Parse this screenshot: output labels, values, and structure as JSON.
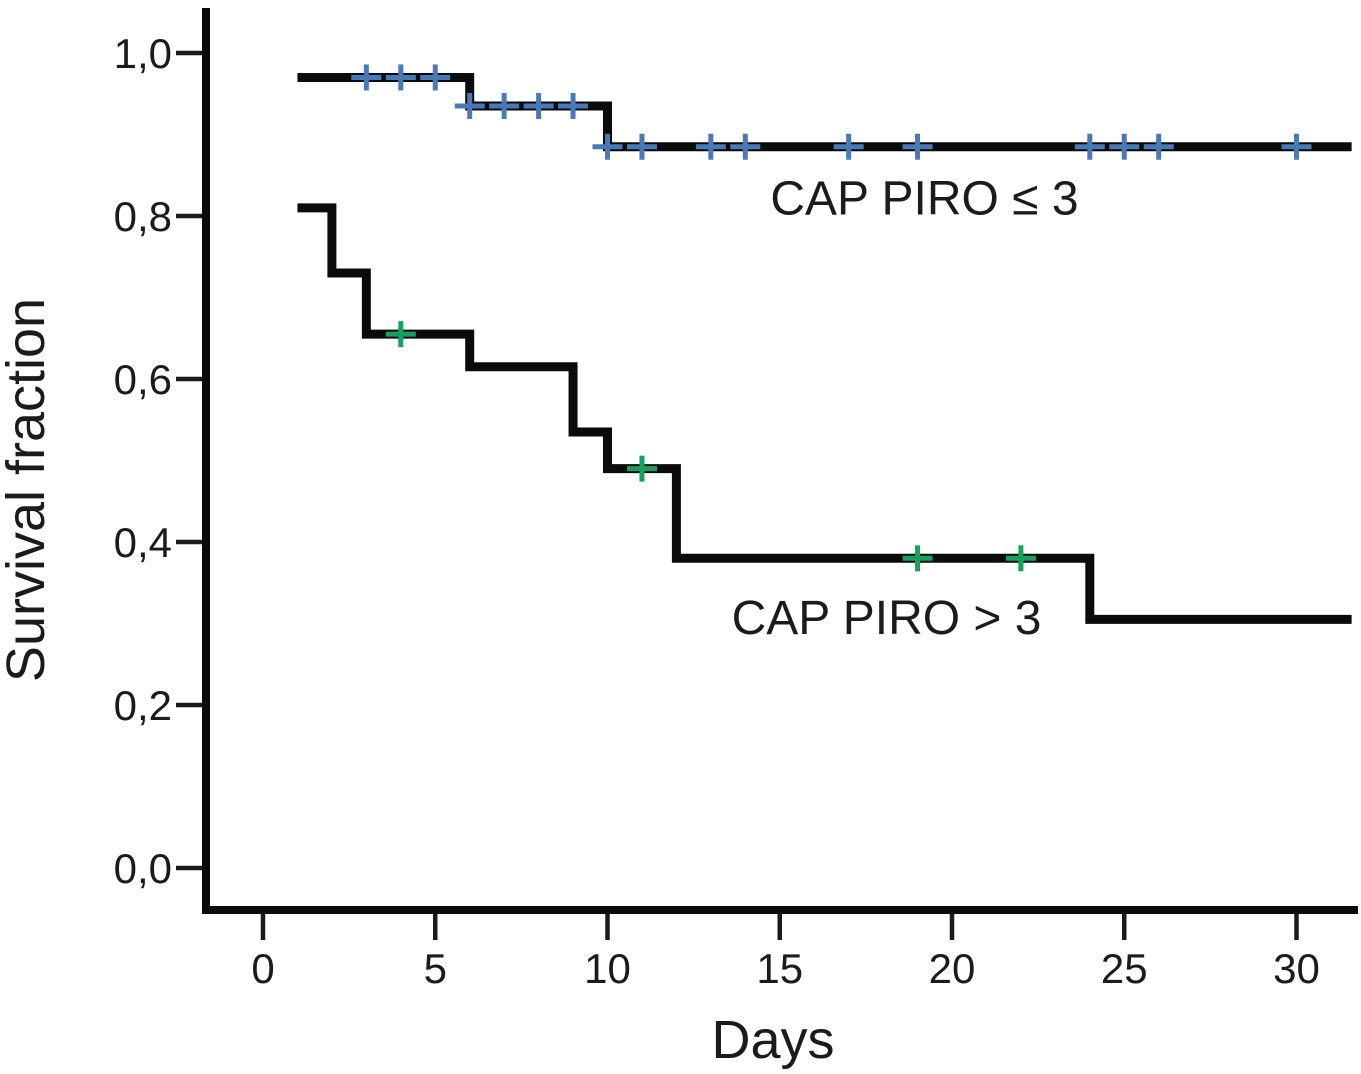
{
  "chart_data": {
    "type": "line",
    "subtype": "kaplan_meier_step",
    "title": "",
    "xlabel": "Days",
    "ylabel": "Survival fraction",
    "x_ticks": [
      0,
      5,
      10,
      15,
      20,
      25,
      30
    ],
    "x_tick_labels": [
      "0",
      "5",
      "10",
      "15",
      "20",
      "25",
      "30"
    ],
    "y_ticks": [
      0.0,
      0.2,
      0.4,
      0.6,
      0.8,
      1.0
    ],
    "y_tick_labels": [
      "0,0",
      "0,2",
      "0,4",
      "0,6",
      "0,8",
      "1,0"
    ],
    "xlim": [
      -1.65,
      31.8
    ],
    "ylim": [
      -0.05,
      1.05
    ],
    "grid": false,
    "legend_position": "inline-annotations",
    "curve_color": "#0b0b0b",
    "text_color": "#1b1b1b",
    "series": [
      {
        "name": "CAP PIRO ≤ 3",
        "slug": "cap-piro-le-3",
        "censor_color": "#4a79b8",
        "start_day": 1,
        "end_day": 31.6,
        "steps": [
          [
            1,
            0.97
          ],
          [
            6,
            0.935
          ],
          [
            10,
            0.885
          ]
        ],
        "censors": [
          [
            3,
            0.97
          ],
          [
            4,
            0.97
          ],
          [
            5,
            0.97
          ],
          [
            6,
            0.935
          ],
          [
            7,
            0.935
          ],
          [
            8,
            0.935
          ],
          [
            9,
            0.935
          ],
          [
            10,
            0.885
          ],
          [
            11,
            0.885
          ],
          [
            13,
            0.885
          ],
          [
            14,
            0.885
          ],
          [
            17,
            0.885
          ],
          [
            19,
            0.885
          ],
          [
            24,
            0.885
          ],
          [
            25,
            0.885
          ],
          [
            26,
            0.885
          ],
          [
            30,
            0.885
          ]
        ],
        "label_day": 19.2,
        "label_value": 0.802
      },
      {
        "name": "CAP PIRO > 3",
        "slug": "cap-piro-gt-3",
        "censor_color": "#17a15e",
        "start_day": 1,
        "end_day": 31.6,
        "steps": [
          [
            1,
            0.81
          ],
          [
            2,
            0.73
          ],
          [
            3,
            0.655
          ],
          [
            6,
            0.615
          ],
          [
            9,
            0.535
          ],
          [
            10,
            0.49
          ],
          [
            12,
            0.38
          ],
          [
            24,
            0.305
          ]
        ],
        "censors": [
          [
            4,
            0.655
          ],
          [
            11,
            0.49
          ],
          [
            19,
            0.38
          ],
          [
            22,
            0.38
          ]
        ],
        "label_day": 18.1,
        "label_value": 0.287
      }
    ]
  }
}
